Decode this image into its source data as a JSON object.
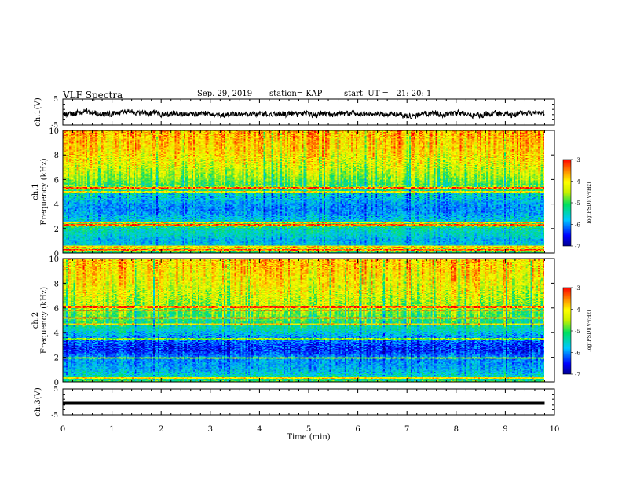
{
  "header": {
    "title": "VLF Spectra",
    "date": "Sep. 29, 2019",
    "station": "station= KAP",
    "start": "start  UT =   21: 20: 1"
  },
  "chart_data": [
    {
      "type": "line",
      "name": "ch.1 waveform",
      "ylabel": "ch.1(V)",
      "yticks": [
        "5",
        "-5"
      ],
      "ylim": [
        -5,
        5
      ],
      "xlim": [
        0,
        10
      ],
      "data_end_min": 9.8,
      "mean_value": -0.5,
      "amplitude": 1.2
    },
    {
      "type": "heatmap",
      "name": "ch.1 spectrogram",
      "ylabel": "ch.1\nFrequency (kHz)",
      "xlim": [
        0,
        10
      ],
      "ylim": [
        0,
        10
      ],
      "yticks": [
        "0",
        "2",
        "4",
        "6",
        "8",
        "10"
      ],
      "data_end_min": 9.8,
      "color_bar": {
        "label": "log(PSD)(V²/Hz)",
        "range": [
          -7,
          -3
        ],
        "ticks": [
          "-3",
          "-4",
          "-5",
          "-6",
          "-7"
        ]
      },
      "level_by_freq_khz": [
        [
          0.0,
          -5.2
        ],
        [
          0.3,
          -4.5
        ],
        [
          0.6,
          -5.6
        ],
        [
          1.0,
          -5.8
        ],
        [
          1.5,
          -5.5
        ],
        [
          2.0,
          -5.4
        ],
        [
          2.3,
          -4.6
        ],
        [
          2.6,
          -5.6
        ],
        [
          3.0,
          -5.8
        ],
        [
          3.5,
          -6.0
        ],
        [
          4.0,
          -5.9
        ],
        [
          4.5,
          -5.7
        ],
        [
          5.0,
          -5.5
        ],
        [
          5.3,
          -4.6
        ],
        [
          5.6,
          -5.0
        ],
        [
          6.0,
          -4.7
        ],
        [
          7.0,
          -4.3
        ],
        [
          8.0,
          -4.0
        ],
        [
          9.0,
          -3.8
        ],
        [
          10.0,
          -3.7
        ]
      ],
      "horizontal_lines_khz": [
        0.2,
        0.5,
        2.3,
        2.5,
        5.0,
        5.3
      ]
    },
    {
      "type": "heatmap",
      "name": "ch.2 spectrogram",
      "ylabel": "ch.2\nFrequency (kHz)",
      "xlim": [
        0,
        10
      ],
      "ylim": [
        0,
        10
      ],
      "yticks": [
        "0",
        "2",
        "4",
        "6",
        "8",
        "10"
      ],
      "data_end_min": 9.8,
      "color_bar": {
        "label": "log(PSD)(V²/Hz)",
        "range": [
          -7,
          -3
        ],
        "ticks": [
          "-3",
          "-4",
          "-5",
          "-6",
          "-7"
        ]
      },
      "level_by_freq_khz": [
        [
          0.0,
          -5.0
        ],
        [
          0.5,
          -5.5
        ],
        [
          1.0,
          -5.8
        ],
        [
          1.5,
          -5.9
        ],
        [
          2.0,
          -6.0
        ],
        [
          2.5,
          -6.4
        ],
        [
          3.0,
          -6.3
        ],
        [
          3.5,
          -6.0
        ],
        [
          4.0,
          -5.6
        ],
        [
          4.5,
          -5.3
        ],
        [
          5.0,
          -5.0
        ],
        [
          5.5,
          -4.8
        ],
        [
          6.0,
          -4.6
        ],
        [
          7.0,
          -4.3
        ],
        [
          8.0,
          -4.1
        ],
        [
          9.0,
          -3.9
        ],
        [
          10.0,
          -3.8
        ]
      ],
      "horizontal_lines_khz": [
        0.3,
        1.9,
        3.5,
        4.7,
        5.2,
        5.8,
        6.1
      ]
    },
    {
      "type": "line",
      "name": "ch.3 waveform",
      "ylabel": "ch.3(V)",
      "yticks": [
        "5",
        "-5"
      ],
      "ylim": [
        -5,
        5
      ],
      "xlim": [
        0,
        10
      ],
      "data_end_min": 9.8,
      "mean_value": -0.3,
      "amplitude": 0.1
    }
  ],
  "x_axis": {
    "label": "Time (min)",
    "ticks": [
      "0",
      "1",
      "2",
      "3",
      "4",
      "5",
      "6",
      "7",
      "8",
      "9",
      "10"
    ]
  }
}
